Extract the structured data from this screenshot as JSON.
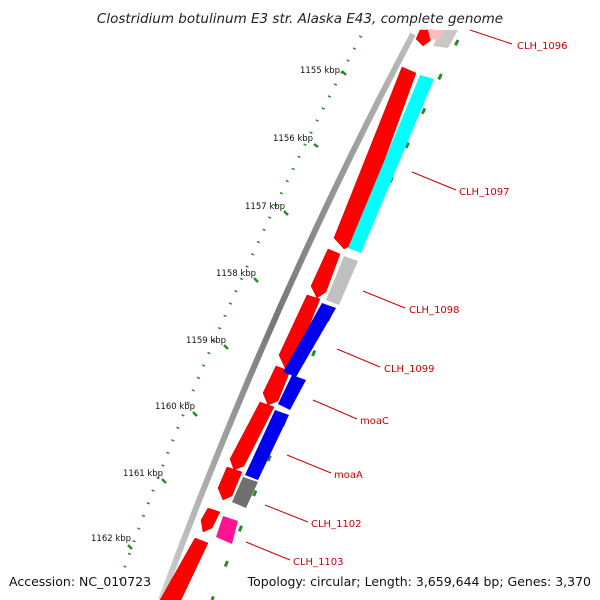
{
  "title": "Clostridium botulinum E3 str. Alaska E43, complete genome",
  "footer": {
    "accession": "Accession: NC_010723",
    "info": "Topology: circular; Length: 3,659,644 bp; Genes: 3,370"
  },
  "ruler": {
    "labels": [
      "1155 kbp",
      "1156 kbp",
      "1157 kbp",
      "1158 kbp",
      "1159 kbp",
      "1160 kbp",
      "1161 kbp",
      "1162 kbp"
    ]
  },
  "gene_labels": [
    "CLH_1096",
    "CLH_1097",
    "CLH_1098",
    "CLH_1099",
    "moaC",
    "moaA",
    "CLH_1102",
    "CLH_1103"
  ],
  "colors": {
    "forward_cds": "#ff0000",
    "cyan_feature": "#00ffff",
    "blue_feature": "#0000ee",
    "grey_feature": "#c0c0c0",
    "dark_grey_feature": "#707070",
    "magenta_feature": "#ff1493",
    "label_color": "#cc0000",
    "tick_color": "#2a8a2a",
    "backbone": "#777777"
  }
}
